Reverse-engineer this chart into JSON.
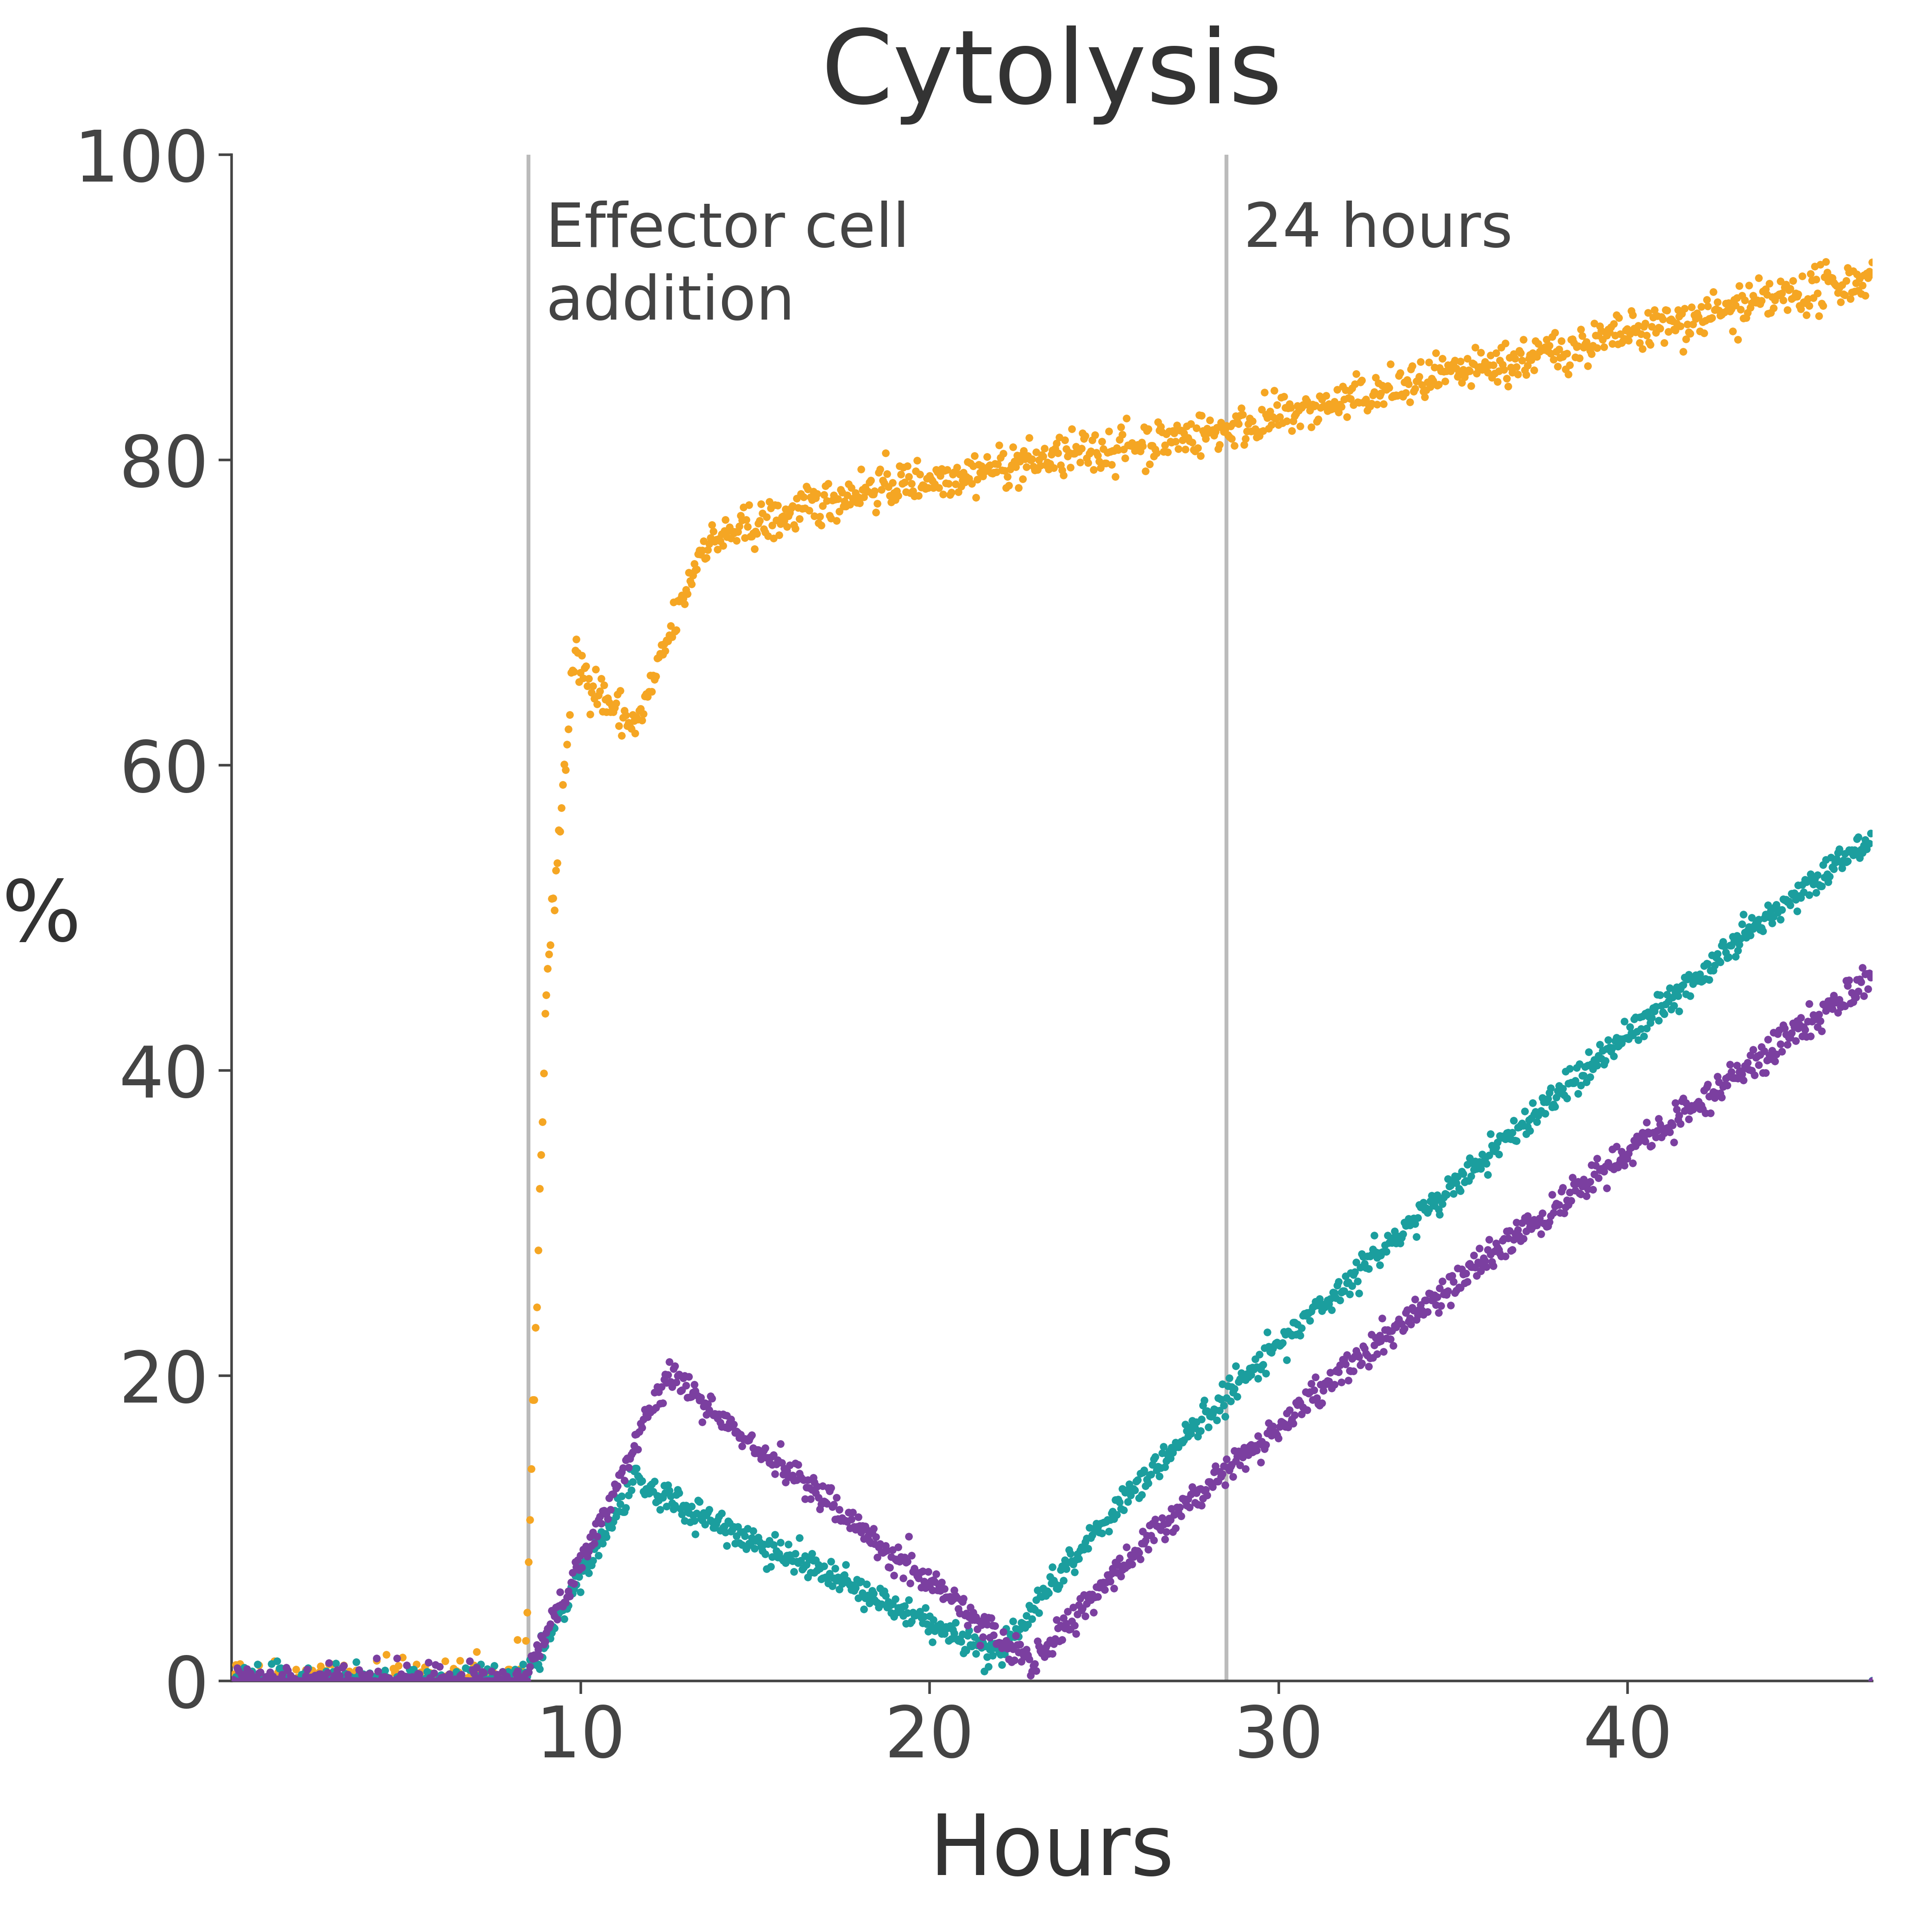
{
  "title": "Cytolysis",
  "xlabel": "Hours",
  "ylabel": "%",
  "title_fontsize": 160,
  "label_fontsize": 130,
  "tick_fontsize": 110,
  "annotation_fontsize": 95,
  "xlim": [
    0,
    47
  ],
  "ylim": [
    0,
    100
  ],
  "xticks": [
    10,
    20,
    30,
    40
  ],
  "yticks": [
    0,
    20,
    40,
    60,
    80,
    100
  ],
  "vline1_x": 8.5,
  "vline2_x": 28.5,
  "vline1_label": "Effector cell\naddition",
  "vline2_label": "24 hours",
  "vline_color": "#bbbbbb",
  "title_color": "#333333",
  "label_color": "#333333",
  "tick_color": "#444444",
  "orange_color": "#F5A623",
  "teal_color": "#1B9E9E",
  "purple_color": "#7B3FA0",
  "bg_color": "#ffffff",
  "marker_size": 12,
  "n_points": 1200
}
